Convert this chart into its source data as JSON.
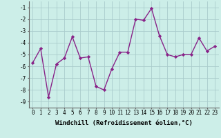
{
  "x": [
    0,
    1,
    2,
    3,
    4,
    5,
    6,
    7,
    8,
    9,
    10,
    11,
    12,
    13,
    14,
    15,
    16,
    17,
    18,
    19,
    20,
    21,
    22,
    23
  ],
  "y": [
    -5.7,
    -4.5,
    -8.6,
    -5.8,
    -5.3,
    -3.5,
    -5.3,
    -5.2,
    -7.7,
    -8.0,
    -6.2,
    -4.8,
    -4.8,
    -2.0,
    -2.1,
    -1.1,
    -3.4,
    -5.0,
    -5.2,
    -5.0,
    -5.0,
    -3.6,
    -4.7,
    -4.3
  ],
  "line_color": "#882288",
  "marker": "D",
  "marker_size": 2.2,
  "bg_color": "#cceee8",
  "grid_color": "#aacccc",
  "xlabel": "Windchill (Refroidissement éolien,°C)",
  "ylim": [
    -9.5,
    -0.5
  ],
  "xlim": [
    -0.5,
    23.5
  ],
  "yticks": [
    -9,
    -8,
    -7,
    -6,
    -5,
    -4,
    -3,
    -2,
    -1
  ],
  "xtick_labels": [
    "0",
    "1",
    "2",
    "3",
    "4",
    "5",
    "6",
    "7",
    "8",
    "9",
    "10",
    "11",
    "12",
    "13",
    "14",
    "15",
    "16",
    "17",
    "18",
    "19",
    "20",
    "21",
    "22",
    "23"
  ],
  "xlabel_fontsize": 6.5,
  "tick_fontsize": 5.5,
  "line_width": 1.0
}
